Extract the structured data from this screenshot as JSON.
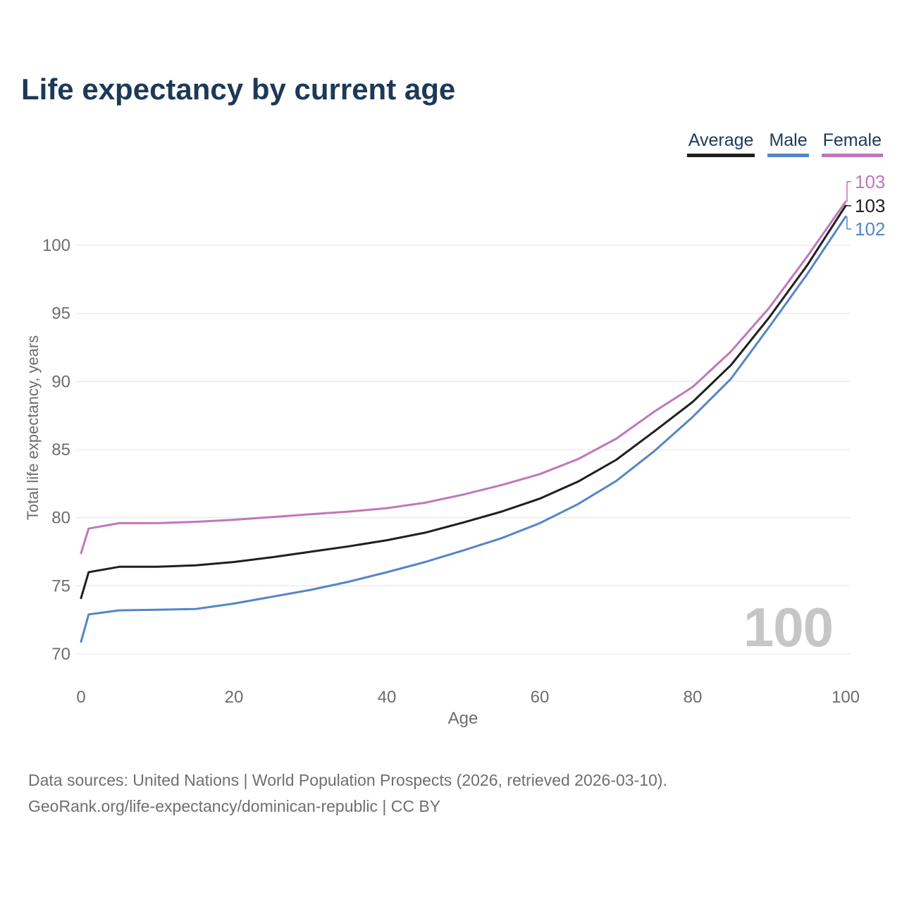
{
  "title": "Life expectancy by current age",
  "legend": [
    {
      "label": "Average",
      "color": "#1f1f1f"
    },
    {
      "label": "Male",
      "color": "#5585c8"
    },
    {
      "label": "Female",
      "color": "#c077ba"
    }
  ],
  "watermark": "100",
  "footer": {
    "line1": "Data sources: United Nations | World Population Prospects (2026, retrieved 2026-03-10).",
    "line2": "GeoRank.org/life-expectancy/dominican-republic | CC BY"
  },
  "colors": {
    "title_text": "#1c3a57",
    "legend_text": "#1c3a57",
    "axis_text": "#6d6d6d",
    "grid": "#eaeaea",
    "watermark": "#c6c6c6",
    "footer_text": "#6f6f6f"
  },
  "chart_data": {
    "type": "line",
    "title": "Life expectancy by current age",
    "xlabel": "Age",
    "ylabel": "Total life expectancy, years",
    "xlim": [
      0,
      100
    ],
    "ylim": [
      70,
      103.5
    ],
    "x_ticks": [
      0,
      20,
      40,
      60,
      80,
      100
    ],
    "y_ticks": [
      70,
      75,
      80,
      85,
      90,
      95,
      100
    ],
    "grid": "horizontal",
    "legend_position": "top-right",
    "x": [
      0,
      1,
      5,
      10,
      15,
      20,
      25,
      30,
      35,
      40,
      45,
      50,
      55,
      60,
      65,
      70,
      75,
      80,
      85,
      90,
      95,
      100
    ],
    "series": [
      {
        "name": "Average",
        "color": "#1f1f1f",
        "end_label": "103",
        "values": [
          74.1,
          76.0,
          76.4,
          76.4,
          76.5,
          76.75,
          77.1,
          77.5,
          77.9,
          78.35,
          78.9,
          79.65,
          80.45,
          81.4,
          82.65,
          84.25,
          86.35,
          88.5,
          91.2,
          94.7,
          98.55,
          102.9
        ]
      },
      {
        "name": "Male",
        "color": "#5585c8",
        "end_label": "102",
        "values": [
          70.9,
          72.9,
          73.2,
          73.25,
          73.3,
          73.7,
          74.2,
          74.7,
          75.3,
          76.0,
          76.75,
          77.6,
          78.5,
          79.6,
          81.0,
          82.7,
          84.9,
          87.4,
          90.2,
          94.0,
          97.9,
          102.1
        ]
      },
      {
        "name": "Female",
        "color": "#c077ba",
        "end_label": "103",
        "values": [
          77.4,
          79.2,
          79.6,
          79.6,
          79.7,
          79.85,
          80.05,
          80.25,
          80.45,
          80.7,
          81.1,
          81.7,
          82.4,
          83.2,
          84.3,
          85.8,
          87.8,
          89.6,
          92.2,
          95.4,
          99.2,
          103.2
        ]
      }
    ]
  }
}
